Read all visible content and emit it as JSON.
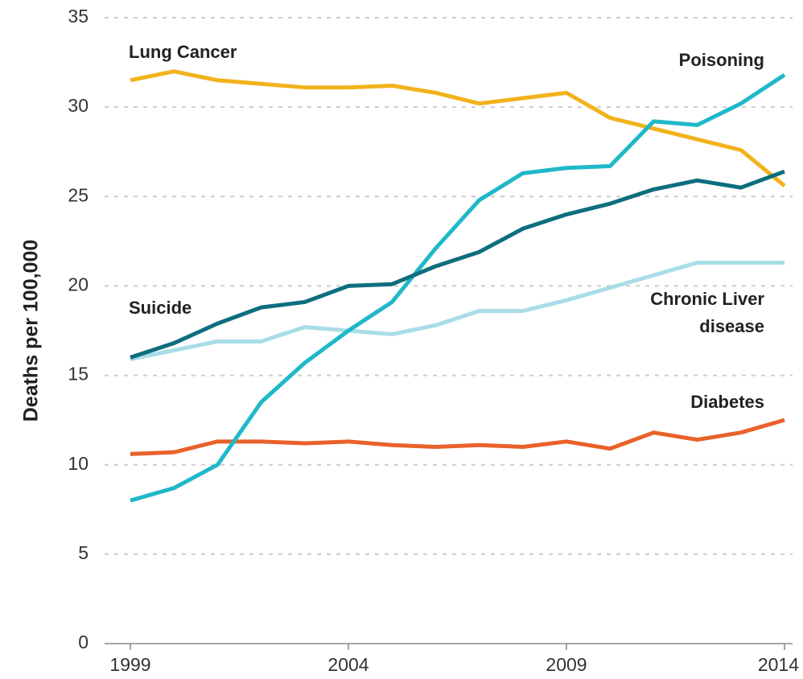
{
  "chart_data": {
    "type": "line",
    "y_label": "Deaths per 100,000",
    "x": [
      1999,
      2000,
      2001,
      2002,
      2003,
      2004,
      2005,
      2006,
      2007,
      2008,
      2009,
      2010,
      2011,
      2012,
      2013,
      2014
    ],
    "series": [
      {
        "name": "Lung Cancer",
        "color": "#f2b21c",
        "values": [
          31.5,
          32.0,
          31.5,
          31.3,
          31.1,
          31.1,
          31.2,
          30.8,
          30.2,
          30.5,
          30.8,
          29.4,
          28.8,
          28.2,
          27.6,
          25.6
        ]
      },
      {
        "name": "Poisoning",
        "color": "#1fb8c9",
        "values": [
          8.0,
          8.7,
          10.0,
          13.5,
          15.7,
          17.5,
          19.1,
          22.1,
          24.8,
          26.3,
          26.6,
          26.7,
          29.2,
          29.0,
          30.2,
          31.8
        ]
      },
      {
        "name": "Suicide",
        "color": "#0d6e7e",
        "values": [
          16.0,
          16.8,
          17.9,
          18.8,
          19.1,
          20.0,
          20.1,
          21.1,
          21.9,
          23.2,
          24.0,
          24.6,
          25.4,
          25.9,
          25.5,
          26.4
        ]
      },
      {
        "name": "Chronic Liver disease",
        "color": "#a8dde6",
        "values": [
          15.9,
          16.4,
          16.9,
          16.9,
          17.7,
          17.5,
          17.3,
          17.8,
          18.6,
          18.6,
          19.2,
          19.9,
          20.6,
          21.3,
          21.3,
          21.3
        ]
      },
      {
        "name": "Diabetes",
        "color": "#e8622a",
        "values": [
          10.6,
          10.7,
          11.3,
          11.3,
          11.2,
          11.3,
          11.1,
          11.0,
          11.1,
          11.0,
          11.3,
          10.9,
          11.8,
          11.4,
          11.8,
          12.5
        ]
      }
    ],
    "xlim": [
      1999,
      2014
    ],
    "xticks": [
      1999,
      2004,
      2009,
      2014
    ],
    "ylim": [
      0,
      35
    ],
    "yticks": [
      0,
      5,
      10,
      15,
      20,
      25,
      30,
      35
    ],
    "grid": true
  }
}
